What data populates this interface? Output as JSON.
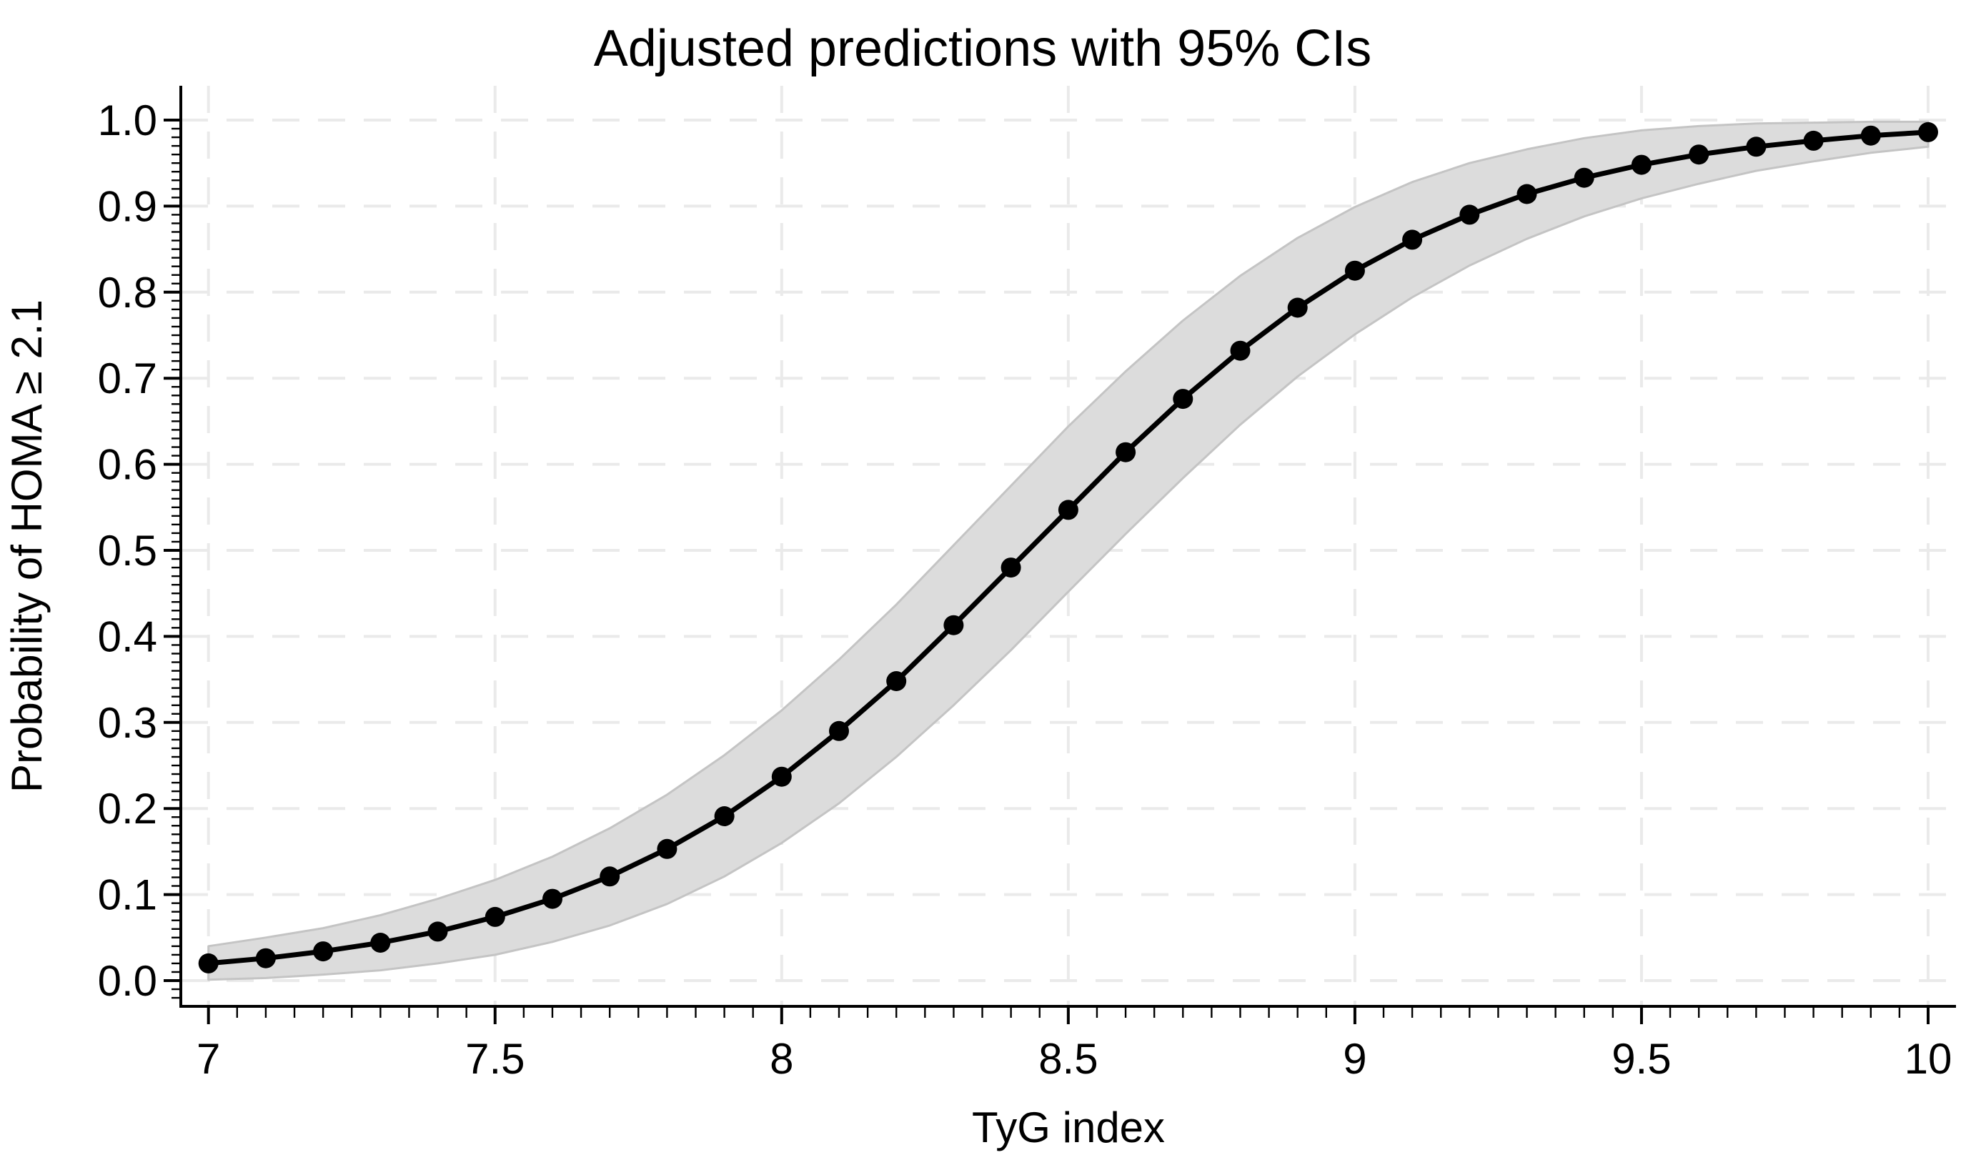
{
  "page": {
    "background": "#ffffff"
  },
  "chart_data": {
    "type": "line",
    "title": "Adjusted predictions with 95% CIs",
    "xlabel": "TyG index",
    "ylabel": "Probability of HOMA ≥ 2.1",
    "ci_level": "95%",
    "xlim": [
      6.95,
      10.05
    ],
    "ylim": [
      -0.03,
      1.04
    ],
    "x_ticks": [
      7,
      7.5,
      8,
      8.5,
      9,
      9.5,
      10
    ],
    "x_tick_labels": [
      "7",
      "7.5",
      "8",
      "8.5",
      "9",
      "9.5",
      "10"
    ],
    "x_minor_tick_step": 0.05,
    "y_ticks": [
      0.0,
      0.1,
      0.2,
      0.3,
      0.4,
      0.5,
      0.6,
      0.7,
      0.8,
      0.9,
      1.0
    ],
    "y_tick_labels": [
      "0.0",
      "0.1",
      "0.2",
      "0.3",
      "0.4",
      "0.5",
      "0.6",
      "0.7",
      "0.8",
      "0.9",
      "1.0"
    ],
    "y_minor_tick_step": 0.01,
    "grid": {
      "style": "dashed",
      "horizontal": true,
      "vertical": true
    },
    "marker": "filled-circle",
    "x": [
      7.0,
      7.1,
      7.2,
      7.3,
      7.4,
      7.5,
      7.6,
      7.7,
      7.8,
      7.9,
      8.0,
      8.1,
      8.2,
      8.3,
      8.4,
      8.5,
      8.6,
      8.7,
      8.8,
      8.9,
      9.0,
      9.1,
      9.2,
      9.3,
      9.4,
      9.5,
      9.6,
      9.7,
      9.8,
      9.9,
      10.0
    ],
    "series": [
      {
        "name": "Adjusted prediction",
        "values": [
          0.02,
          0.026,
          0.034,
          0.044,
          0.057,
          0.074,
          0.095,
          0.121,
          0.153,
          0.191,
          0.237,
          0.29,
          0.348,
          0.413,
          0.48,
          0.547,
          0.614,
          0.676,
          0.732,
          0.782,
          0.825,
          0.861,
          0.89,
          0.914,
          0.933,
          0.948,
          0.96,
          0.969,
          0.976,
          0.982,
          0.986
        ],
        "ci_lower": [
          0.001,
          0.003,
          0.007,
          0.012,
          0.02,
          0.03,
          0.045,
          0.064,
          0.089,
          0.121,
          0.16,
          0.206,
          0.26,
          0.32,
          0.384,
          0.452,
          0.519,
          0.584,
          0.646,
          0.702,
          0.751,
          0.794,
          0.831,
          0.862,
          0.888,
          0.909,
          0.926,
          0.941,
          0.952,
          0.962,
          0.969
        ],
        "ci_upper": [
          0.04,
          0.05,
          0.061,
          0.076,
          0.095,
          0.117,
          0.144,
          0.177,
          0.216,
          0.262,
          0.314,
          0.373,
          0.437,
          0.506,
          0.575,
          0.644,
          0.708,
          0.767,
          0.819,
          0.863,
          0.899,
          0.928,
          0.95,
          0.966,
          0.979,
          0.988,
          0.993,
          0.996,
          0.997,
          0.998,
          0.998
        ]
      }
    ]
  },
  "colors": {
    "line": "#000000",
    "marker": "#000000",
    "ci_band_fill": "#dcdcdc",
    "ci_band_edge": "#c4c4c4",
    "gridline": "#eaeaea",
    "axis": "#000000",
    "text": "#000000",
    "background": "#ffffff"
  }
}
